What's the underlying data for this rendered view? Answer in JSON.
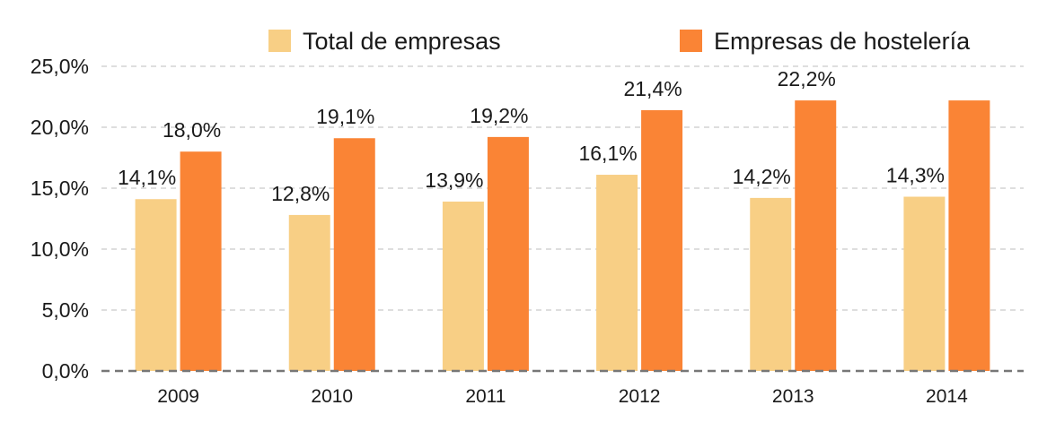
{
  "chart_data": {
    "type": "bar",
    "categories": [
      "2009",
      "2010",
      "2011",
      "2012",
      "2013",
      "2014"
    ],
    "series": [
      {
        "name": "Total de empresas",
        "color": "#f8cf85",
        "values": [
          14.1,
          12.8,
          13.9,
          16.1,
          14.2,
          14.3
        ],
        "labels": [
          "14,1%",
          "12,8%",
          "13,9%",
          "16,1%",
          "14,2%",
          "14,3%"
        ]
      },
      {
        "name": "Empresas de hostelería",
        "color": "#fa8435",
        "values": [
          18.0,
          19.1,
          19.2,
          21.4,
          22.2,
          22.2
        ],
        "labels": [
          "18,0%",
          "19,1%",
          "19,2%",
          "21,4%",
          "22,2%",
          ""
        ]
      }
    ],
    "yticks": [
      0,
      5,
      10,
      15,
      20,
      25
    ],
    "ytick_labels": [
      "0,0%",
      "5,0%",
      "10,0%",
      "15,0%",
      "20,0%",
      "25,0%"
    ],
    "ylim": [
      0,
      25
    ],
    "grid": true,
    "legend_position": "top"
  }
}
